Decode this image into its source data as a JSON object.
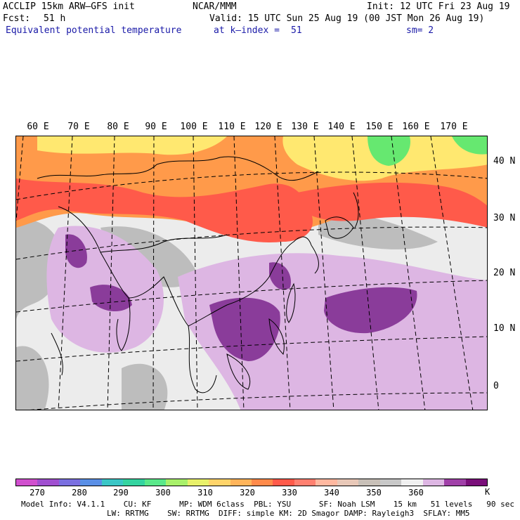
{
  "header": {
    "model": "ACCLIP 15km ARW–GFS init",
    "center": "NCAR/MMM",
    "init": "Init: 12 UTC Fri 23 Aug 19",
    "fcst_label": "Fcst:",
    "fcst_value": "51 h",
    "valid": "Valid: 15 UTC Sun 25 Aug 19 (00 JST Mon 26 Aug 19)",
    "field": "Equivalent potential temperature",
    "level": "at k–index =",
    "level_value": "51",
    "smoothing": "sm= 2"
  },
  "map": {
    "lon_labels": [
      "60 E",
      "70 E",
      "80 E",
      "90 E",
      "100 E",
      "110 E",
      "120 E",
      "130 E",
      "140 E",
      "150 E",
      "160 E",
      "170 E"
    ],
    "lat_labels": [
      "40 N",
      "30 N",
      "20 N",
      "10 N",
      "0"
    ],
    "colors": {
      "hot": "#ff5a4a",
      "orange": "#ff9a4a",
      "yellow": "#ffe870",
      "green": "#66e870",
      "gray_dark": "#bdbdbd",
      "gray_light": "#ececec",
      "lilac": "#ddb6e3",
      "purple": "#8a3c9a",
      "border": "#000000"
    }
  },
  "colorbar": {
    "colors": [
      "#d04fce",
      "#a04fd0",
      "#7a6fe0",
      "#5a8fe6",
      "#3ac6c6",
      "#34d4a0",
      "#5ae88a",
      "#a8f06a",
      "#e8f06a",
      "#ffd46a",
      "#ffb45a",
      "#ff8a4a",
      "#ff5a4a",
      "#ff8070",
      "#ffb8a0",
      "#e8c8b8",
      "#c8c0b8",
      "#c8c8c8",
      "#f0f0f0",
      "#ddb6e3",
      "#a040a8",
      "#7a0f7a"
    ],
    "ticks": [
      "270",
      "280",
      "290",
      "300",
      "310",
      "320",
      "330",
      "340",
      "350",
      "360"
    ],
    "unit": "K"
  },
  "footer": {
    "line1": "Model Info: V4.1.1    CU: KF      MP: WDM 6class  PBL: YSU      SF: Noah LSM    15 km   51 levels   90 sec",
    "line2": "LW: RRTMG    SW: RRTMG  DIFF: simple KM: 2D Smagor DAMP: Rayleigh3  SFLAY: MM5"
  }
}
